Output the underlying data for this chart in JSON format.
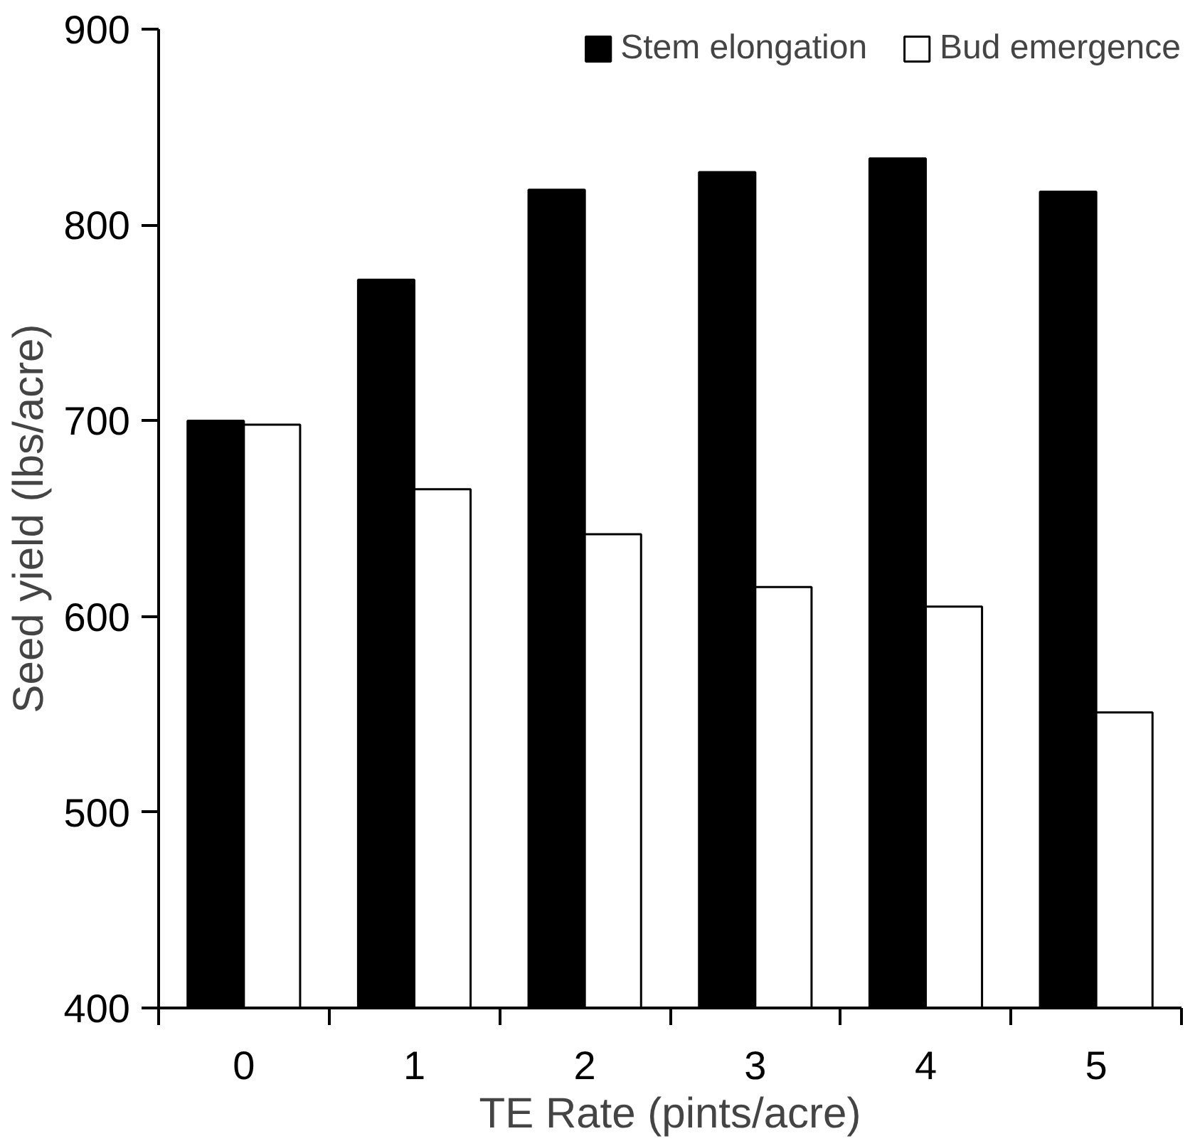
{
  "chart_data": {
    "type": "bar",
    "xlabel": "TE Rate (pints/acre)",
    "ylabel": "Seed yield (lbs/acre)",
    "categories": [
      "0",
      "1",
      "2",
      "3",
      "4",
      "5"
    ],
    "series": [
      {
        "name": "Stem elongation",
        "color": "#000000",
        "values": [
          700,
          772,
          818,
          827,
          834,
          817
        ]
      },
      {
        "name": "Bud emergence",
        "color": "#ffffff",
        "values": [
          698,
          665,
          642,
          615,
          605,
          551
        ]
      }
    ],
    "ylim": [
      400,
      900
    ],
    "yticks": [
      400,
      500,
      600,
      700,
      800,
      900
    ],
    "legend": "top right",
    "grid": false
  }
}
